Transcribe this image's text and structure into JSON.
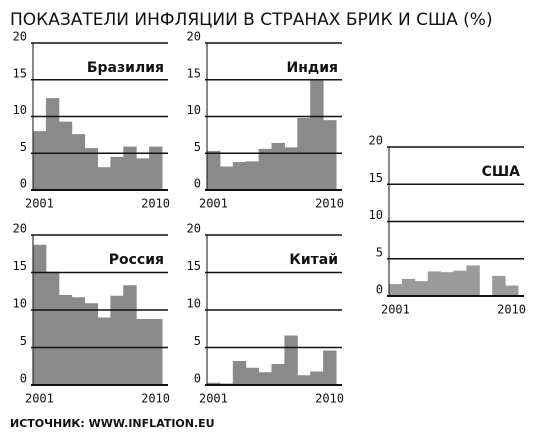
{
  "title": "ПОКАЗАТЕЛИ ИНФЛЯЦИИ В СТРАНАХ БРИК И США (%)",
  "source": "ИСТОЧНИК: WWW.INFLATION.EU",
  "chart_data": [
    {
      "type": "bar",
      "title": "Бразилия",
      "color": "#8a8a8a",
      "categories": [
        "2001",
        null,
        null,
        null,
        null,
        null,
        null,
        null,
        null,
        "2010"
      ],
      "values": [
        8,
        12.5,
        9.3,
        7.6,
        5.7,
        3.1,
        4.5,
        5.9,
        4.3,
        5.9
      ],
      "ylim": [
        0,
        20
      ],
      "yticks": [
        0,
        5,
        10,
        15,
        20
      ],
      "grid": true
    },
    {
      "type": "bar",
      "title": "Индия",
      "color": "#8a8a8a",
      "categories": [
        "2001",
        null,
        null,
        null,
        null,
        null,
        null,
        null,
        null,
        "2010"
      ],
      "values": [
        5.3,
        3.2,
        3.8,
        3.9,
        5.6,
        6.4,
        5.8,
        9.8,
        15,
        9.5
      ],
      "ylim": [
        0,
        20
      ],
      "yticks": [
        0,
        5,
        10,
        15,
        20
      ],
      "grid": true
    },
    {
      "type": "bar",
      "title": "Россия",
      "color": "#8a8a8a",
      "categories": [
        "2001",
        null,
        null,
        null,
        null,
        null,
        null,
        null,
        null,
        "2010"
      ],
      "values": [
        18.7,
        15.1,
        12,
        11.7,
        10.9,
        9,
        11.9,
        13.3,
        8.8,
        8.8
      ],
      "ylim": [
        0,
        20
      ],
      "yticks": [
        0,
        5,
        10,
        15,
        20
      ],
      "grid": true
    },
    {
      "type": "bar",
      "title": "Китай",
      "color": "#8a8a8a",
      "categories": [
        "2001",
        null,
        null,
        null,
        null,
        null,
        null,
        null,
        null,
        "2010"
      ],
      "values": [
        0.3,
        0.2,
        3.2,
        2.3,
        1.7,
        2.8,
        6.6,
        1.3,
        1.8,
        4.6
      ],
      "ylim": [
        0,
        20
      ],
      "yticks": [
        0,
        5,
        10,
        15,
        20
      ],
      "grid": true
    },
    {
      "type": "bar",
      "title": "США",
      "color": "#9a9a9a",
      "categories": [
        "2001",
        null,
        null,
        null,
        null,
        null,
        null,
        null,
        null,
        "2010"
      ],
      "values": [
        1.6,
        2.3,
        2.0,
        3.3,
        3.2,
        3.4,
        4.1,
        0.1,
        2.7,
        1.4
      ],
      "ylim": [
        0,
        20
      ],
      "yticks": [
        0,
        5,
        10,
        15,
        20
      ],
      "grid": true
    }
  ]
}
